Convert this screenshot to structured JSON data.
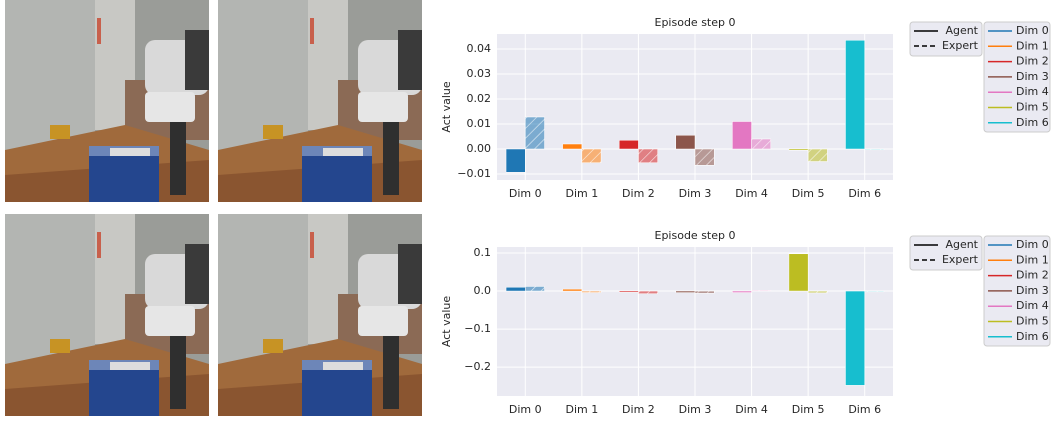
{
  "chart_data": [
    {
      "type": "bar",
      "title": "Episode step 0",
      "ylabel": "Act value",
      "categories": [
        "Dim 0",
        "Dim 1",
        "Dim 2",
        "Dim 3",
        "Dim 4",
        "Dim 5",
        "Dim 6"
      ],
      "colors": [
        "#1f77b4",
        "#ff7f0e",
        "#d62728",
        "#8c564b",
        "#e377c2",
        "#bcbd22",
        "#17becf"
      ],
      "series": [
        {
          "name": "Agent",
          "linestyle": "solid",
          "hatch": false,
          "values": [
            -0.0093,
            0.002,
            0.0035,
            0.0055,
            0.011,
            -0.0005,
            0.0435
          ]
        },
        {
          "name": "Expert",
          "linestyle": "dashed",
          "hatch": true,
          "values": [
            0.0128,
            -0.0055,
            -0.0055,
            -0.0065,
            0.004,
            -0.005,
            -0.0002
          ]
        }
      ],
      "ylim": [
        -0.0124,
        0.046
      ],
      "yticks": [
        {
          "value": -0.01,
          "label": "−0.01"
        },
        {
          "value": 0,
          "label": "0.00"
        },
        0.01,
        0.02,
        0.03,
        0.04
      ],
      "grid": true
    },
    {
      "type": "bar",
      "title": "Episode step 0",
      "ylabel": "Act value",
      "categories": [
        "Dim 0",
        "Dim 1",
        "Dim 2",
        "Dim 3",
        "Dim 4",
        "Dim 5",
        "Dim 6"
      ],
      "colors": [
        "#1f77b4",
        "#ff7f0e",
        "#d62728",
        "#8c564b",
        "#e377c2",
        "#bcbd22",
        "#17becf"
      ],
      "series": [
        {
          "name": "Agent",
          "linestyle": "solid",
          "hatch": false,
          "values": [
            0.01,
            0.005,
            -0.003,
            -0.004,
            -0.004,
            0.098,
            -0.248
          ]
        },
        {
          "name": "Expert",
          "linestyle": "dashed",
          "hatch": true,
          "values": [
            0.012,
            -0.004,
            -0.007,
            -0.006,
            0.002,
            -0.005,
            -0.002
          ]
        }
      ],
      "ylim": [
        -0.276,
        0.1158
      ],
      "yticks": [
        {
          "value": -0.2,
          "label": "−0.2"
        },
        {
          "value": -0.1,
          "label": "−0.1"
        },
        {
          "value": 0,
          "label": "0.0"
        },
        0.1
      ],
      "grid": true
    }
  ]
}
